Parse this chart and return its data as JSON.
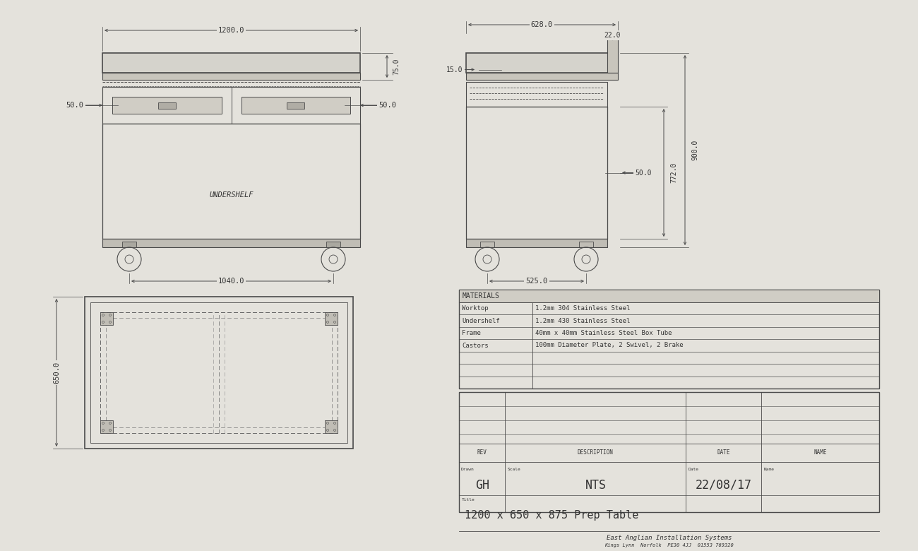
{
  "bg_color": "#e4e2dc",
  "line_color": "#4a4a4a",
  "font_color": "#333333",
  "font_name": "monospace",
  "title": "1200 x 650 x 875 Prep Table",
  "company": "East Anglian Installation Systems",
  "company_sub": "Kings Lynn  Norfolk  PE30 4JJ  01553 769320",
  "drawn_by": "GH",
  "scale": "NTS",
  "date": "22/08/17",
  "materials": [
    [
      "Worktop",
      "1.2mm 304 Stainless Steel"
    ],
    [
      "Undershelf",
      "1.2mm 430 Stainless Steel"
    ],
    [
      "Frame",
      "40mm x 40mm Stainless Steel Box Tube"
    ],
    [
      "Castors",
      "100mm Diameter Plate, 2 Swivel, 2 Brake"
    ]
  ]
}
